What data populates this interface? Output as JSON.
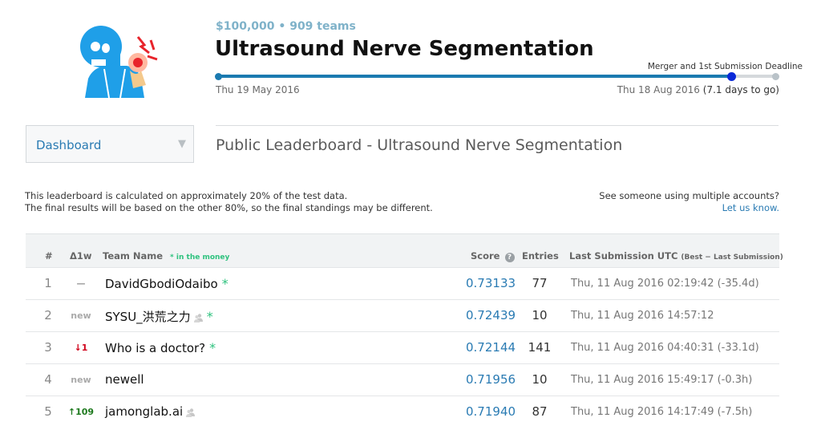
{
  "competition": {
    "prize_line": "$100,000 • 909 teams",
    "title": "Ultrasound Nerve Segmentation",
    "deadline_label": "Merger and 1st Submission Deadline",
    "start_date": "Thu 19 May 2016",
    "end_date": "Thu 18 Aug 2016",
    "days_to_go": "(7.1 days to go)",
    "progress_fraction": 0.92
  },
  "nav": {
    "dropdown_label": "Dashboard",
    "dropdown_icon": "triangle-down-icon"
  },
  "leaderboard": {
    "title": "Public Leaderboard - Ultrasound Nerve Segmentation",
    "note_line1": "This leaderboard is calculated on approximately 20% of the test data.",
    "note_line2": "The final results will be based on the other 80%, so the final standings may be different.",
    "multi_account_text": "See someone using multiple accounts?",
    "multi_account_link": "Let us know.",
    "headers": {
      "rank": "#",
      "delta": "Δ1w",
      "team": "Team Name",
      "money_note": "* in the money",
      "score": "Score",
      "entries": "Entries",
      "last": "Last Submission UTC",
      "last_note": "(Best − Last Submission)"
    },
    "rows": [
      {
        "rank": "1",
        "delta": "—",
        "delta_color": "#999999",
        "team": "DavidGbodiOdaibo",
        "team_icon": false,
        "star": "*",
        "score": "0.73133",
        "entries": "77",
        "last": "Thu, 11 Aug 2016 02:19:42 (-35.4d)"
      },
      {
        "rank": "2",
        "delta": "new",
        "delta_color": "#aaaaaa",
        "team": "SYSU_洪荒之力",
        "team_icon": true,
        "star": "*",
        "score": "0.72439",
        "entries": "10",
        "last": "Thu, 11 Aug 2016 14:57:12"
      },
      {
        "rank": "3",
        "delta": "↓1",
        "delta_color": "#d0021b",
        "team": "Who is a doctor?",
        "team_icon": false,
        "star": "*",
        "score": "0.72144",
        "entries": "141",
        "last": "Thu, 11 Aug 2016 04:40:31 (-33.1d)"
      },
      {
        "rank": "4",
        "delta": "new",
        "delta_color": "#aaaaaa",
        "team": "newell",
        "team_icon": false,
        "star": "",
        "score": "0.71956",
        "entries": "10",
        "last": "Thu, 11 Aug 2016 15:49:17 (-0.3h)"
      },
      {
        "rank": "5",
        "delta": "↑109",
        "delta_color": "#1f7a1f",
        "team": "jamonglab.ai",
        "team_icon": true,
        "star": "",
        "score": "0.71940",
        "entries": "87",
        "last": "Thu, 11 Aug 2016 14:17:49 (-7.5h)"
      }
    ]
  },
  "colors": {
    "accent": "#2a7bb3",
    "timeline": "#1a7ab0",
    "money_star": "#2ec27e"
  }
}
